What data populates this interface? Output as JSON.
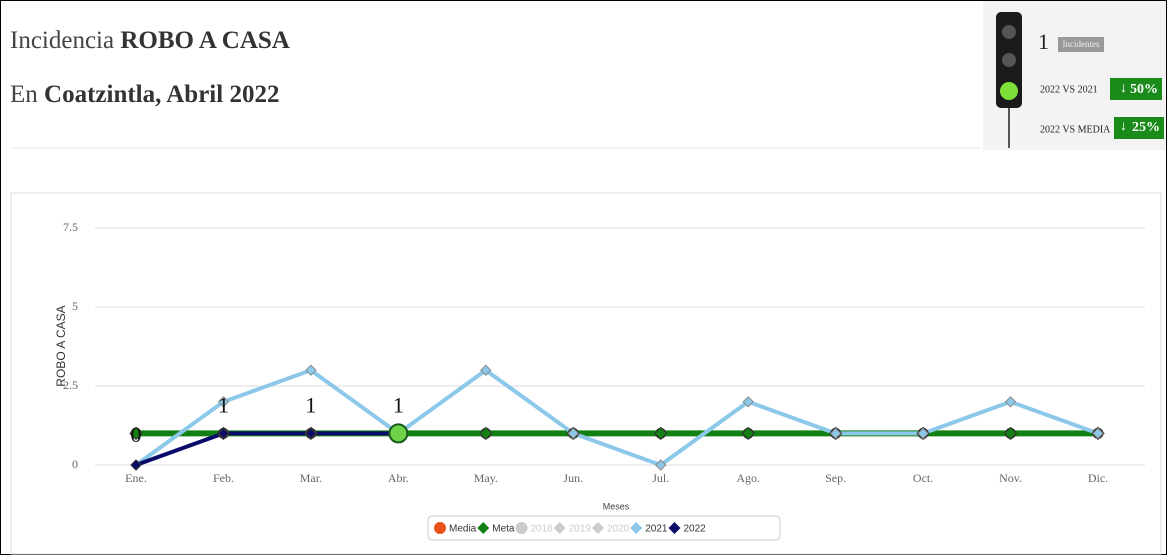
{
  "header": {
    "title_prefix": "Incidencia",
    "title_bold": "ROBO A CASA",
    "subtitle_prefix": "En",
    "subtitle_bold": "Coatzintla, Abril 2022"
  },
  "indicator": {
    "count": 1,
    "badge": "Incidentes",
    "comparisons": [
      {
        "label": "2022 VS 2021",
        "value": "50%"
      },
      {
        "label": "2022 VS MEDIA",
        "value": "25%"
      }
    ]
  },
  "chart_data": {
    "type": "line",
    "y_label": "ROBO A CASA",
    "x_label": "Meses",
    "categories": [
      "Ene.",
      "Feb.",
      "Mar.",
      "Abr.",
      "May.",
      "Jun.",
      "Jul.",
      "Ago.",
      "Sep.",
      "Oct.",
      "Nov.",
      "Dic."
    ],
    "ylim": [
      0,
      7.5
    ],
    "yticks": [
      0,
      2.5,
      5,
      7.5
    ],
    "grid": true,
    "series": [
      {
        "name": "Media",
        "color": "#e8541e",
        "marker": "circle",
        "values": [
          1,
          1,
          1,
          1,
          1,
          1,
          1,
          1,
          1,
          1,
          1,
          1
        ]
      },
      {
        "name": "Meta",
        "color": "#138013",
        "marker": "diamond",
        "values": [
          1,
          1,
          1,
          1,
          1,
          1,
          1,
          1,
          1,
          1,
          1,
          1
        ]
      },
      {
        "name": "2018",
        "color": "#cccccc",
        "marker": "circle",
        "visible": false,
        "values": [
          null,
          null,
          null,
          null,
          null,
          null,
          null,
          null,
          null,
          null,
          null,
          null
        ]
      },
      {
        "name": "2019",
        "color": "#cccccc",
        "marker": "diamond",
        "visible": false,
        "values": [
          null,
          null,
          null,
          null,
          null,
          null,
          null,
          null,
          null,
          null,
          null,
          null
        ]
      },
      {
        "name": "2020",
        "color": "#cccccc",
        "marker": "diamond",
        "visible": false,
        "values": [
          null,
          null,
          null,
          null,
          null,
          null,
          null,
          null,
          null,
          null,
          null,
          null
        ]
      },
      {
        "name": "2021",
        "color": "#8cc8ea",
        "marker": "diamond",
        "values": [
          0,
          2,
          3,
          1,
          3,
          1,
          0,
          2,
          1,
          1,
          2,
          1
        ]
      },
      {
        "name": "2022",
        "color": "#0b0b6b",
        "marker": "diamond",
        "data_labels": true,
        "values": [
          0,
          1,
          1,
          1,
          null,
          null,
          null,
          null,
          null,
          null,
          null,
          null
        ]
      }
    ]
  }
}
